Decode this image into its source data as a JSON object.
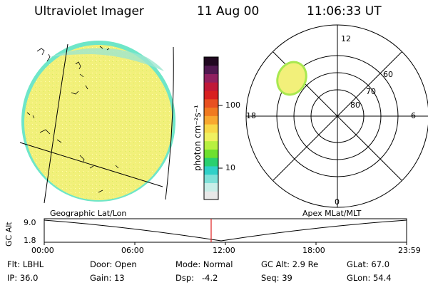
{
  "header": {
    "title": "Ultraviolet Imager",
    "date": "11 Aug 00",
    "time": "11:06:33 UT"
  },
  "colorbar": {
    "label": "photon cm⁻²s⁻¹",
    "tick_high": "100",
    "tick_low": "10",
    "colors": [
      "#e8e8e8",
      "#c8eee8",
      "#7ee0d8",
      "#30d0c8",
      "#2ad070",
      "#6ee030",
      "#b8f040",
      "#f0f060",
      "#f8d848",
      "#f8a830",
      "#f07a20",
      "#e85020",
      "#d82020",
      "#c01838",
      "#902060",
      "#501850",
      "#200820"
    ]
  },
  "polar_plot": {
    "mlt_labels": {
      "top": "12",
      "left": "18",
      "right": "6",
      "bottom": "0"
    },
    "lat_labels": [
      "60",
      "70",
      "80"
    ]
  },
  "altitude_plot": {
    "left_title": "Geographic Lat/Lon",
    "right_title": "Apex MLat/MLT",
    "ylabel": "GC Alt",
    "ytick_top": "9.0",
    "ytick_bottom": "1.8",
    "xticks": [
      "00:00",
      "06:00",
      "12:00",
      "18:00",
      "23:59"
    ]
  },
  "info": {
    "row1": [
      {
        "label": "Flt:",
        "value": "LBHL"
      },
      {
        "label": "Door:",
        "value": "Open"
      },
      {
        "label": "Mode:",
        "value": "Normal"
      },
      {
        "label": "GC Alt:",
        "value": "2.9 Re"
      },
      {
        "label": "GLat:",
        "value": "67.0"
      }
    ],
    "row2": [
      {
        "label": "IP:",
        "value": "36.0"
      },
      {
        "label": "Gain:",
        "value": "13"
      },
      {
        "label": "Dsp:",
        "value": "-4.2"
      },
      {
        "label": "Seq:",
        "value": "39"
      },
      {
        "label": "GLon:",
        "value": "54.4"
      }
    ]
  },
  "colors": {
    "disk": "#f2f07a",
    "disk_edge": "#60e0c8",
    "marker": "#e02020"
  }
}
